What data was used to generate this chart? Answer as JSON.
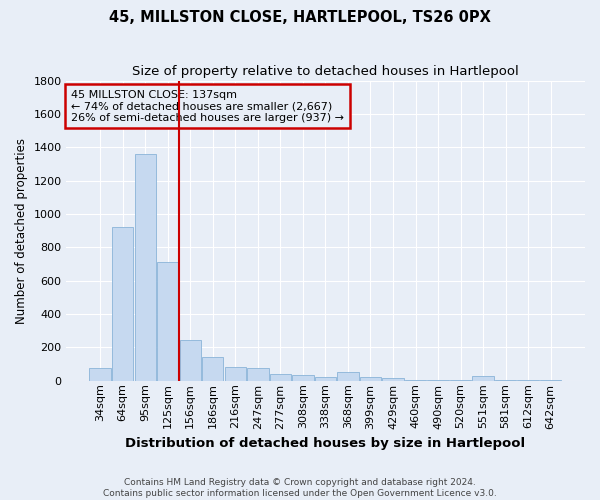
{
  "title": "45, MILLSTON CLOSE, HARTLEPOOL, TS26 0PX",
  "subtitle": "Size of property relative to detached houses in Hartlepool",
  "xlabel": "Distribution of detached houses by size in Hartlepool",
  "ylabel": "Number of detached properties",
  "footnote": "Contains HM Land Registry data © Crown copyright and database right 2024.\nContains public sector information licensed under the Open Government Licence v3.0.",
  "categories": [
    "34sqm",
    "64sqm",
    "95sqm",
    "125sqm",
    "156sqm",
    "186sqm",
    "216sqm",
    "247sqm",
    "277sqm",
    "308sqm",
    "338sqm",
    "368sqm",
    "399sqm",
    "429sqm",
    "460sqm",
    "490sqm",
    "520sqm",
    "551sqm",
    "581sqm",
    "612sqm",
    "642sqm"
  ],
  "values": [
    75,
    920,
    1360,
    710,
    245,
    145,
    80,
    75,
    40,
    35,
    25,
    55,
    20,
    15,
    5,
    5,
    5,
    30,
    5,
    5,
    5
  ],
  "bar_color": "#c6d9f0",
  "bar_edge_color": "#8ab4d8",
  "vline_x": 3.5,
  "vline_color": "#cc0000",
  "annotation_box_text": "45 MILLSTON CLOSE: 137sqm\n← 74% of detached houses are smaller (2,667)\n26% of semi-detached houses are larger (937) →",
  "annotation_box_color": "#cc0000",
  "ylim": [
    0,
    1800
  ],
  "yticks": [
    0,
    200,
    400,
    600,
    800,
    1000,
    1200,
    1400,
    1600,
    1800
  ],
  "background_color": "#e8eef7",
  "grid_color": "#ffffff",
  "title_fontsize": 10.5,
  "subtitle_fontsize": 9.5,
  "ylabel_fontsize": 8.5,
  "xlabel_fontsize": 9.5,
  "tick_fontsize": 8,
  "annot_fontsize": 8
}
